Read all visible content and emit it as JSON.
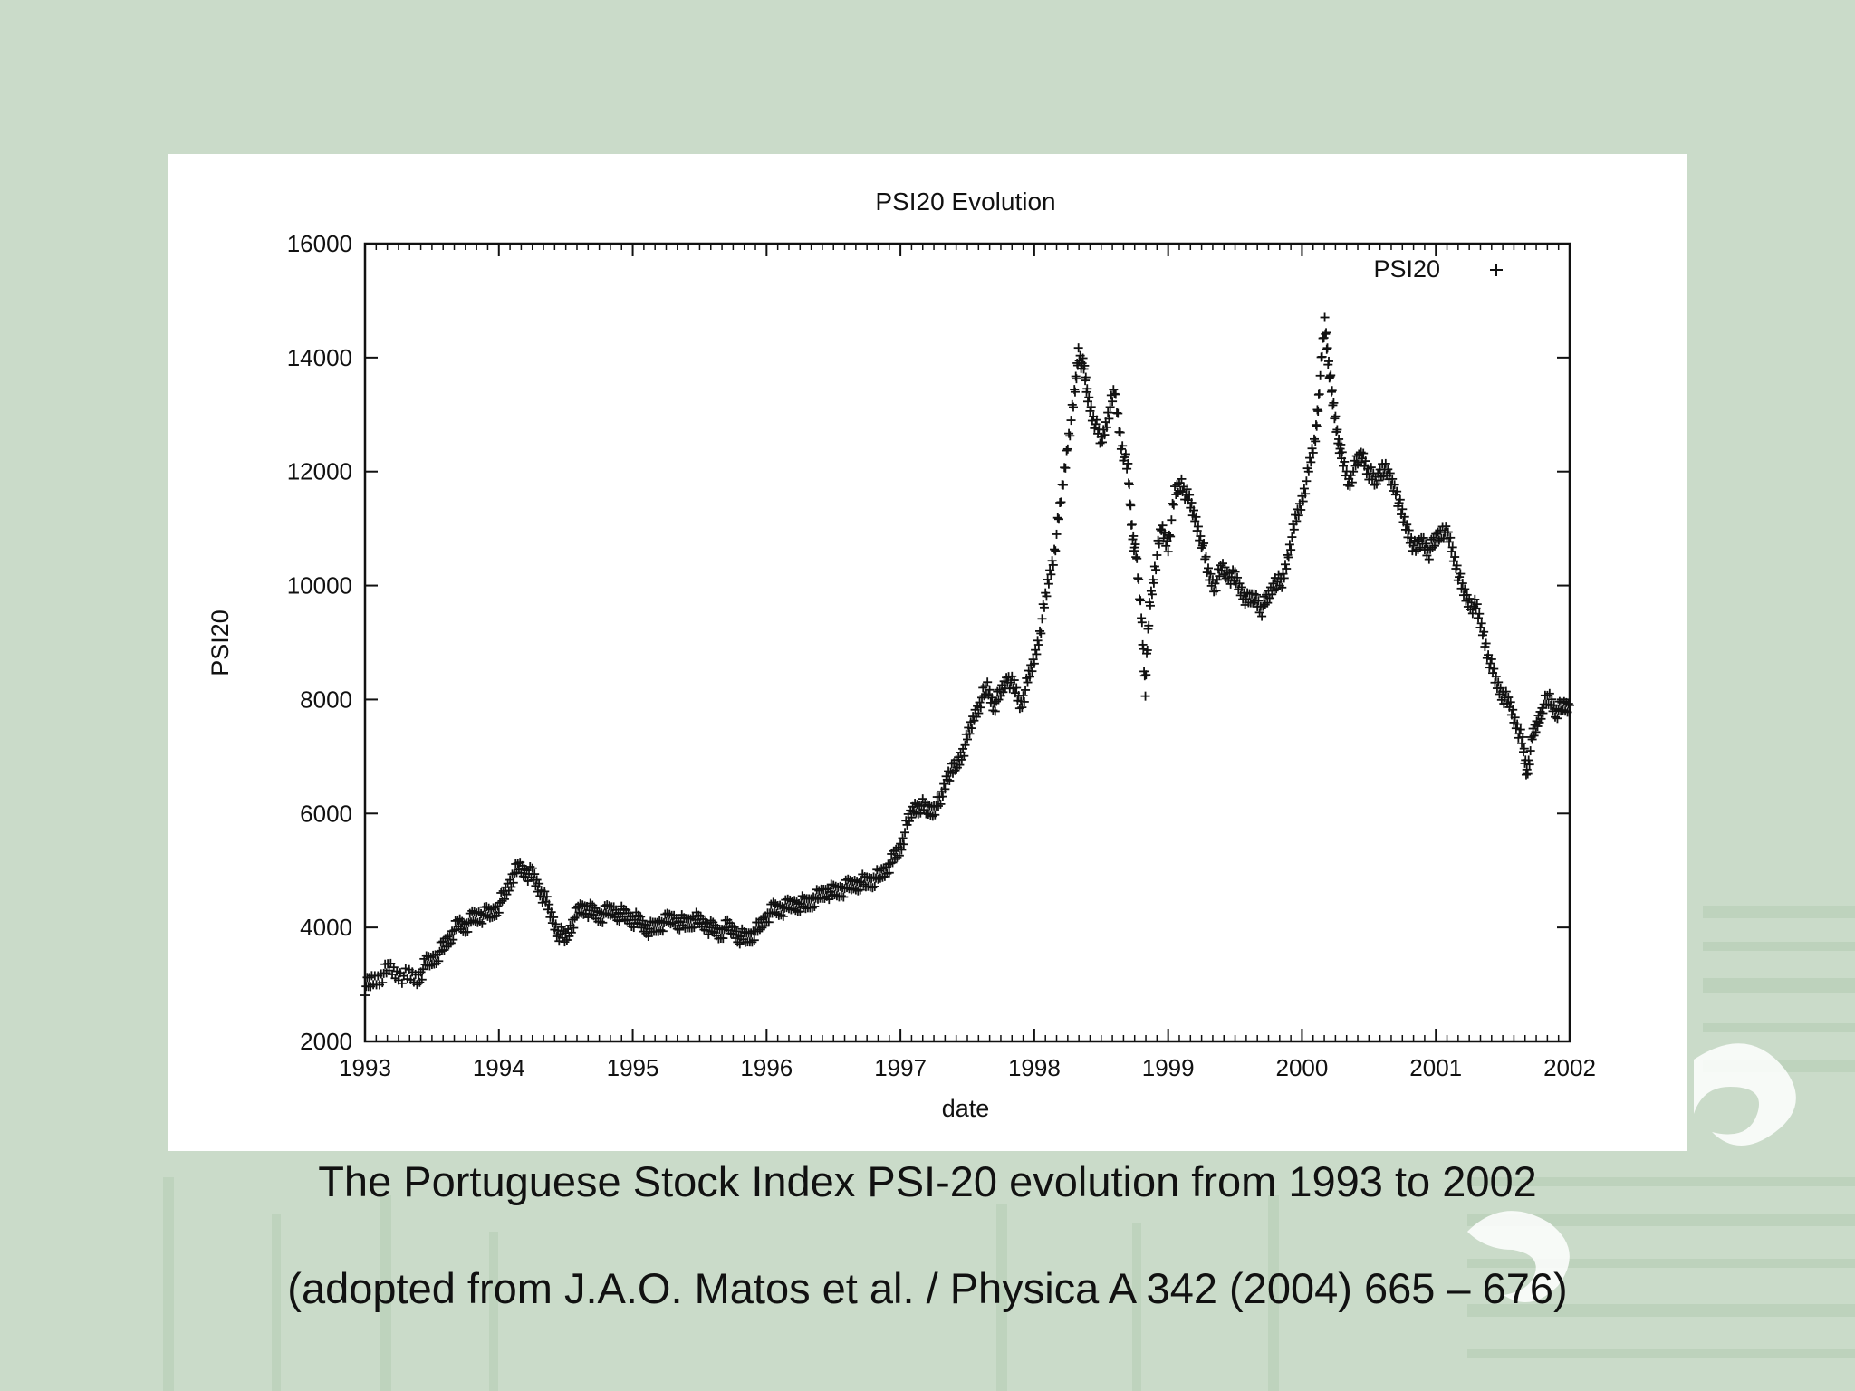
{
  "theme": {
    "background": "#cadbc9",
    "panel": "#ffffff",
    "ink": "#111111"
  },
  "captions": {
    "line1": "The Portuguese Stock Index PSI-20 evolution from 1993 to 2002",
    "line2": "(adopted from J.A.O. Matos et al. / Physica A 342 (2004) 665 – 676)"
  },
  "chart_data": {
    "type": "scatter",
    "title": "PSI20 Evolution",
    "xlabel": "date",
    "ylabel": "PSI20",
    "xlim": [
      1993,
      2002
    ],
    "ylim": [
      2000,
      16000
    ],
    "xticks": [
      "1993",
      "1994",
      "1995",
      "1996",
      "1997",
      "1998",
      "1999",
      "2000",
      "2001",
      "2002"
    ],
    "yticks": [
      "2000",
      "4000",
      "6000",
      "8000",
      "10000",
      "12000",
      "14000",
      "16000"
    ],
    "grid": false,
    "legend": "top-right",
    "marker": "+",
    "series": [
      {
        "name": "PSI20",
        "points": [
          [
            1993.0,
            2950
          ],
          [
            1993.05,
            3050
          ],
          [
            1993.12,
            3150
          ],
          [
            1993.18,
            3280
          ],
          [
            1993.25,
            3180
          ],
          [
            1993.33,
            3120
          ],
          [
            1993.4,
            3100
          ],
          [
            1993.45,
            3350
          ],
          [
            1993.5,
            3420
          ],
          [
            1993.55,
            3550
          ],
          [
            1993.6,
            3700
          ],
          [
            1993.65,
            3900
          ],
          [
            1993.7,
            4050
          ],
          [
            1993.75,
            4020
          ],
          [
            1993.8,
            4150
          ],
          [
            1993.85,
            4200
          ],
          [
            1993.9,
            4220
          ],
          [
            1993.95,
            4250
          ],
          [
            1994.0,
            4400
          ],
          [
            1994.05,
            4600
          ],
          [
            1994.1,
            4900
          ],
          [
            1994.15,
            5050
          ],
          [
            1994.2,
            4980
          ],
          [
            1994.25,
            4900
          ],
          [
            1994.3,
            4700
          ],
          [
            1994.35,
            4450
          ],
          [
            1994.4,
            4150
          ],
          [
            1994.45,
            3900
          ],
          [
            1994.5,
            3800
          ],
          [
            1994.55,
            4100
          ],
          [
            1994.6,
            4300
          ],
          [
            1994.65,
            4350
          ],
          [
            1994.7,
            4250
          ],
          [
            1994.75,
            4200
          ],
          [
            1994.8,
            4250
          ],
          [
            1994.85,
            4300
          ],
          [
            1994.9,
            4250
          ],
          [
            1994.95,
            4200
          ],
          [
            1995.0,
            4150
          ],
          [
            1995.05,
            4100
          ],
          [
            1995.1,
            4000
          ],
          [
            1995.15,
            3950
          ],
          [
            1995.2,
            4050
          ],
          [
            1995.25,
            4100
          ],
          [
            1995.3,
            4150
          ],
          [
            1995.35,
            4100
          ],
          [
            1995.4,
            4050
          ],
          [
            1995.45,
            4150
          ],
          [
            1995.5,
            4100
          ],
          [
            1995.55,
            4050
          ],
          [
            1995.6,
            3950
          ],
          [
            1995.65,
            3900
          ],
          [
            1995.7,
            4000
          ],
          [
            1995.75,
            3950
          ],
          [
            1995.8,
            3850
          ],
          [
            1995.85,
            3800
          ],
          [
            1995.9,
            3900
          ],
          [
            1995.95,
            4000
          ],
          [
            1996.0,
            4200
          ],
          [
            1996.05,
            4300
          ],
          [
            1996.1,
            4320
          ],
          [
            1996.15,
            4350
          ],
          [
            1996.2,
            4400
          ],
          [
            1996.25,
            4420
          ],
          [
            1996.3,
            4400
          ],
          [
            1996.35,
            4500
          ],
          [
            1996.4,
            4550
          ],
          [
            1996.45,
            4650
          ],
          [
            1996.5,
            4600
          ],
          [
            1996.55,
            4650
          ],
          [
            1996.6,
            4700
          ],
          [
            1996.65,
            4750
          ],
          [
            1996.7,
            4800
          ],
          [
            1996.75,
            4780
          ],
          [
            1996.8,
            4850
          ],
          [
            1996.85,
            4900
          ],
          [
            1996.9,
            5050
          ],
          [
            1996.95,
            5200
          ],
          [
            1997.0,
            5400
          ],
          [
            1997.05,
            5800
          ],
          [
            1997.1,
            6100
          ],
          [
            1997.15,
            6150
          ],
          [
            1997.2,
            6050
          ],
          [
            1997.25,
            6100
          ],
          [
            1997.3,
            6200
          ],
          [
            1997.35,
            6700
          ],
          [
            1997.4,
            6750
          ],
          [
            1997.45,
            7000
          ],
          [
            1997.5,
            7300
          ],
          [
            1997.55,
            7700
          ],
          [
            1997.6,
            8000
          ],
          [
            1997.65,
            8200
          ],
          [
            1997.7,
            7900
          ],
          [
            1997.75,
            8100
          ],
          [
            1997.8,
            8400
          ],
          [
            1997.85,
            8200
          ],
          [
            1997.9,
            7900
          ],
          [
            1997.95,
            8300
          ],
          [
            1998.0,
            8700
          ],
          [
            1998.05,
            9300
          ],
          [
            1998.1,
            10000
          ],
          [
            1998.15,
            10600
          ],
          [
            1998.2,
            11500
          ],
          [
            1998.25,
            12500
          ],
          [
            1998.3,
            13300
          ],
          [
            1998.33,
            14100
          ],
          [
            1998.37,
            13800
          ],
          [
            1998.4,
            13300
          ],
          [
            1998.45,
            12900
          ],
          [
            1998.5,
            12500
          ],
          [
            1998.55,
            13000
          ],
          [
            1998.6,
            13400
          ],
          [
            1998.65,
            12500
          ],
          [
            1998.7,
            12000
          ],
          [
            1998.73,
            11000
          ],
          [
            1998.76,
            10500
          ],
          [
            1998.8,
            9500
          ],
          [
            1998.83,
            8200
          ],
          [
            1998.86,
            9600
          ],
          [
            1998.9,
            10300
          ],
          [
            1998.95,
            11000
          ],
          [
            1999.0,
            10700
          ],
          [
            1999.05,
            11600
          ],
          [
            1999.1,
            11800
          ],
          [
            1999.15,
            11500
          ],
          [
            1999.2,
            11200
          ],
          [
            1999.25,
            10800
          ],
          [
            1999.3,
            10200
          ],
          [
            1999.35,
            10000
          ],
          [
            1999.4,
            10300
          ],
          [
            1999.45,
            10200
          ],
          [
            1999.5,
            10100
          ],
          [
            1999.55,
            9900
          ],
          [
            1999.6,
            9700
          ],
          [
            1999.65,
            9800
          ],
          [
            1999.7,
            9600
          ],
          [
            1999.75,
            9800
          ],
          [
            1999.8,
            10100
          ],
          [
            1999.85,
            10000
          ],
          [
            1999.9,
            10600
          ],
          [
            1999.95,
            11100
          ],
          [
            2000.0,
            11500
          ],
          [
            2000.05,
            12000
          ],
          [
            2000.1,
            12600
          ],
          [
            2000.13,
            13500
          ],
          [
            2000.17,
            14600
          ],
          [
            2000.2,
            13900
          ],
          [
            2000.23,
            13200
          ],
          [
            2000.27,
            12600
          ],
          [
            2000.3,
            12200
          ],
          [
            2000.35,
            11800
          ],
          [
            2000.4,
            12100
          ],
          [
            2000.45,
            12300
          ],
          [
            2000.5,
            12000
          ],
          [
            2000.55,
            11800
          ],
          [
            2000.6,
            12100
          ],
          [
            2000.65,
            11900
          ],
          [
            2000.7,
            11700
          ],
          [
            2000.75,
            11200
          ],
          [
            2000.8,
            10900
          ],
          [
            2000.85,
            10600
          ],
          [
            2000.9,
            10800
          ],
          [
            2000.95,
            10600
          ],
          [
            2001.0,
            10800
          ],
          [
            2001.05,
            11000
          ],
          [
            2001.1,
            10800
          ],
          [
            2001.15,
            10400
          ],
          [
            2001.2,
            9900
          ],
          [
            2001.25,
            9700
          ],
          [
            2001.3,
            9600
          ],
          [
            2001.35,
            9200
          ],
          [
            2001.4,
            8700
          ],
          [
            2001.45,
            8300
          ],
          [
            2001.5,
            8100
          ],
          [
            2001.55,
            7900
          ],
          [
            2001.6,
            7600
          ],
          [
            2001.65,
            7200
          ],
          [
            2001.68,
            6700
          ],
          [
            2001.72,
            7300
          ],
          [
            2001.76,
            7600
          ],
          [
            2001.8,
            7900
          ],
          [
            2001.85,
            8000
          ],
          [
            2001.9,
            7800
          ],
          [
            2001.95,
            7850
          ],
          [
            2002.0,
            7900
          ]
        ]
      }
    ]
  }
}
